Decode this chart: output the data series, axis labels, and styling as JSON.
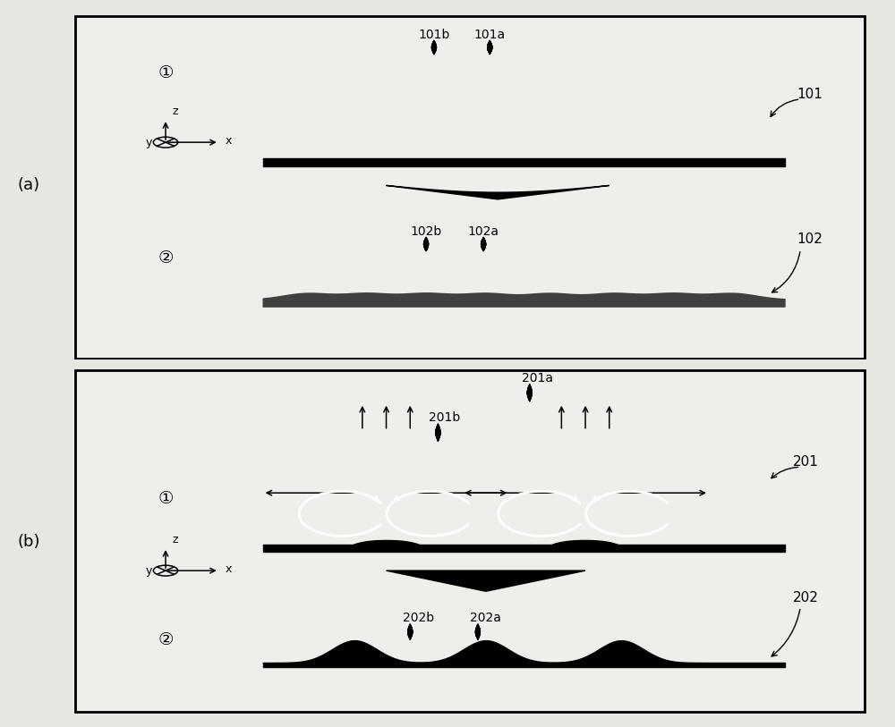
{
  "bg_color": "#e8e6e0",
  "panel_bg": "#f0eeea",
  "black": "#000000",
  "dark_gray": "#404040",
  "medium_gray": "#555555",
  "white": "#ffffff",
  "panel_a_label": "(a)",
  "panel_b_label": "(b)",
  "label_101": "101",
  "label_101a": "101a",
  "label_101b": "101b",
  "label_102": "102",
  "label_102a": "102a",
  "label_102b": "102b",
  "label_201": "201",
  "label_201a": "201a",
  "label_201b": "201b",
  "label_202": "202",
  "label_202a": "202a",
  "label_202b": "202b",
  "circle_1": "①",
  "circle_2": "②"
}
